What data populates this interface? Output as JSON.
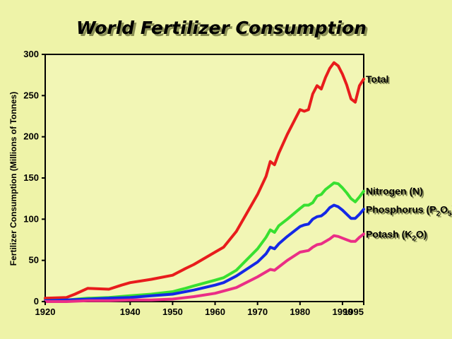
{
  "chart_data": {
    "type": "line",
    "title": "World Fertilizer Consumption",
    "ylabel": "Fertilizer Consumption (Millions of Tonnes)",
    "xlabel": "",
    "xlim": [
      1920,
      1995
    ],
    "ylim": [
      0,
      300
    ],
    "x_ticks": [
      1920,
      1940,
      1950,
      1960,
      1970,
      1980,
      1990,
      1995
    ],
    "y_ticks": [
      0,
      50,
      100,
      150,
      200,
      250,
      300
    ],
    "grid": false,
    "series": [
      {
        "name": "Total",
        "label_parts": [
          {
            "t": "Total"
          }
        ],
        "color": "#e81c1c",
        "x": [
          1920,
          1925,
          1927,
          1930,
          1935,
          1938,
          1940,
          1945,
          1950,
          1953,
          1955,
          1960,
          1962,
          1965,
          1970,
          1972,
          1973,
          1974,
          1975,
          1977,
          1980,
          1981,
          1982,
          1983,
          1984,
          1985,
          1986,
          1987,
          1988,
          1989,
          1990,
          1991,
          1992,
          1993,
          1994,
          1995
        ],
        "values": [
          4,
          5,
          9,
          16,
          15,
          20,
          23,
          27,
          32,
          40,
          45,
          60,
          66,
          85,
          130,
          152,
          170,
          166,
          180,
          203,
          233,
          231,
          233,
          252,
          262,
          258,
          272,
          283,
          290,
          286,
          276,
          263,
          246,
          242,
          262,
          270
        ]
      },
      {
        "name": "Nitrogen (N)",
        "label_parts": [
          {
            "t": "Nitrogen (N)"
          }
        ],
        "color": "#38e030",
        "x": [
          1920,
          1925,
          1930,
          1935,
          1940,
          1945,
          1950,
          1953,
          1955,
          1960,
          1962,
          1965,
          1970,
          1972,
          1973,
          1974,
          1975,
          1977,
          1980,
          1981,
          1982,
          1983,
          1984,
          1985,
          1986,
          1987,
          1988,
          1989,
          1990,
          1991,
          1992,
          1993,
          1994,
          1995
        ],
        "values": [
          1,
          2,
          4,
          5,
          7,
          9,
          12,
          16,
          19,
          26,
          29,
          38,
          64,
          78,
          87,
          84,
          92,
          100,
          113,
          117,
          117,
          120,
          128,
          130,
          136,
          140,
          144,
          143,
          138,
          132,
          125,
          121,
          127,
          134
        ]
      },
      {
        "name": "Phosphorus (P2O5)",
        "label_parts": [
          {
            "t": "Phosphorus (P"
          },
          {
            "t": "2",
            "sub": true
          },
          {
            "t": "O"
          },
          {
            "t": "5",
            "sub": true
          },
          {
            "t": ")"
          }
        ],
        "color": "#1428e6",
        "x": [
          1920,
          1925,
          1930,
          1935,
          1940,
          1945,
          1950,
          1953,
          1955,
          1960,
          1962,
          1965,
          1970,
          1972,
          1973,
          1974,
          1975,
          1977,
          1980,
          1981,
          1982,
          1983,
          1984,
          1985,
          1986,
          1987,
          1988,
          1989,
          1990,
          1991,
          1992,
          1993,
          1994,
          1995
        ],
        "values": [
          1,
          2,
          3,
          4,
          5,
          7,
          9,
          12,
          14,
          20,
          23,
          31,
          48,
          58,
          66,
          64,
          70,
          79,
          91,
          93,
          94,
          100,
          103,
          104,
          108,
          114,
          117,
          115,
          111,
          106,
          101,
          101,
          106,
          112
        ]
      },
      {
        "name": "Potash (K2O)",
        "label_parts": [
          {
            "t": "Potash (K"
          },
          {
            "t": "2",
            "sub": true
          },
          {
            "t": "O)"
          }
        ],
        "color": "#ea2e86",
        "x": [
          1920,
          1925,
          1930,
          1935,
          1940,
          1945,
          1950,
          1955,
          1960,
          1965,
          1970,
          1972,
          1973,
          1974,
          1975,
          1977,
          1980,
          1982,
          1983,
          1984,
          1985,
          1986,
          1987,
          1988,
          1989,
          1990,
          1991,
          1992,
          1993,
          1994,
          1995
        ],
        "values": [
          0,
          0,
          1,
          1,
          2,
          2,
          3,
          6,
          10,
          17,
          30,
          36,
          39,
          38,
          42,
          50,
          60,
          62,
          66,
          69,
          70,
          73,
          76,
          80,
          79,
          77,
          75,
          73,
          73,
          78,
          82
        ]
      }
    ]
  }
}
